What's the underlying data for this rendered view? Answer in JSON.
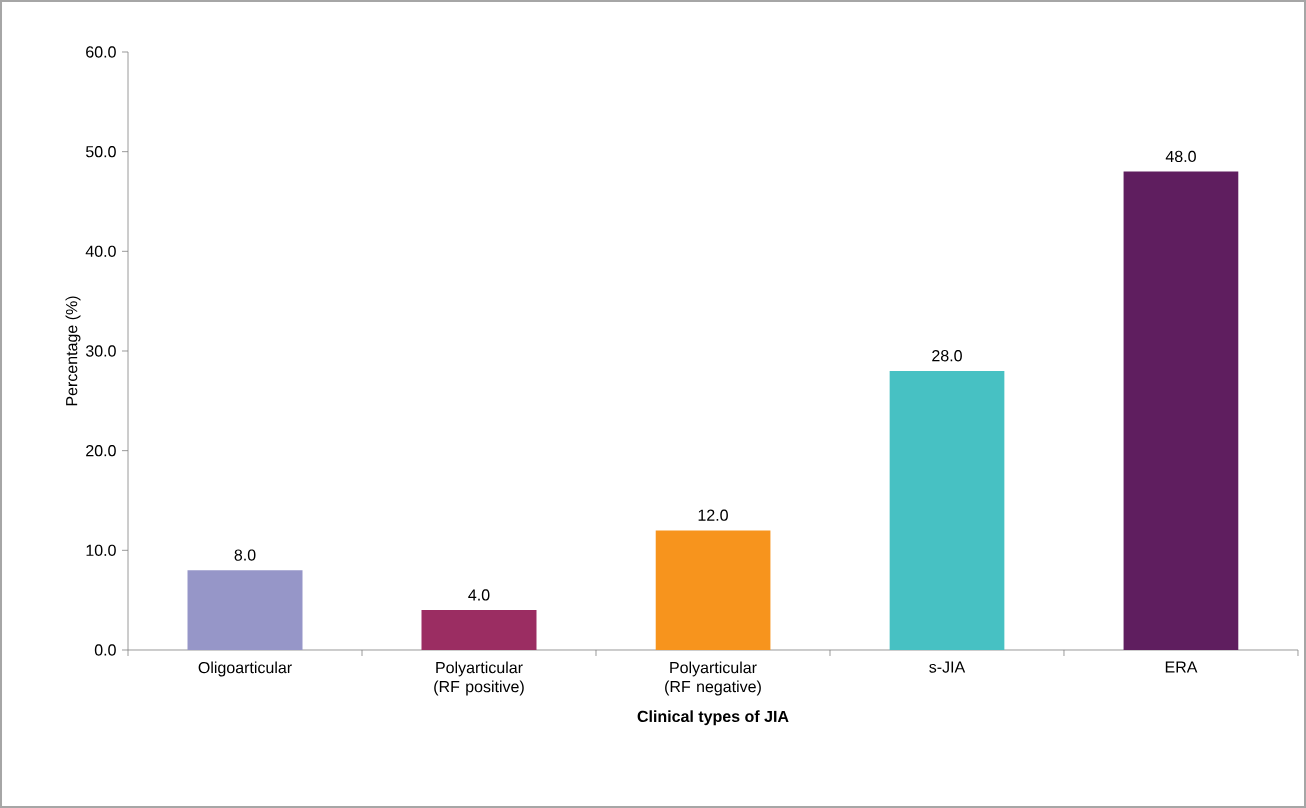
{
  "chart_data": {
    "type": "bar",
    "categories": [
      "Oligoarticular",
      "Polyarticular (RF positive)",
      "Polyarticular (RF negative)",
      "s-JIA",
      "ERA"
    ],
    "values": [
      8.0,
      4.0,
      12.0,
      28.0,
      48.0
    ],
    "colors": [
      "#9696c8",
      "#9b2d62",
      "#f7941d",
      "#47c1c3",
      "#5f1e5f"
    ],
    "value_labels": [
      "8.0",
      "4.0",
      "12.0",
      "28.0",
      "48.0"
    ],
    "xlabel": "Clinical types of JIA",
    "ylabel": "Percentage (%)",
    "ylim": [
      0,
      60
    ],
    "yticks": [
      {
        "value": 0,
        "label": "0.0"
      },
      {
        "value": 10,
        "label": "10.0"
      },
      {
        "value": 20,
        "label": "20.0"
      },
      {
        "value": 30,
        "label": "30.0"
      },
      {
        "value": 40,
        "label": "40.0"
      },
      {
        "value": 50,
        "label": "50.0"
      },
      {
        "value": 60,
        "label": "60.0"
      }
    ],
    "grid": false
  }
}
